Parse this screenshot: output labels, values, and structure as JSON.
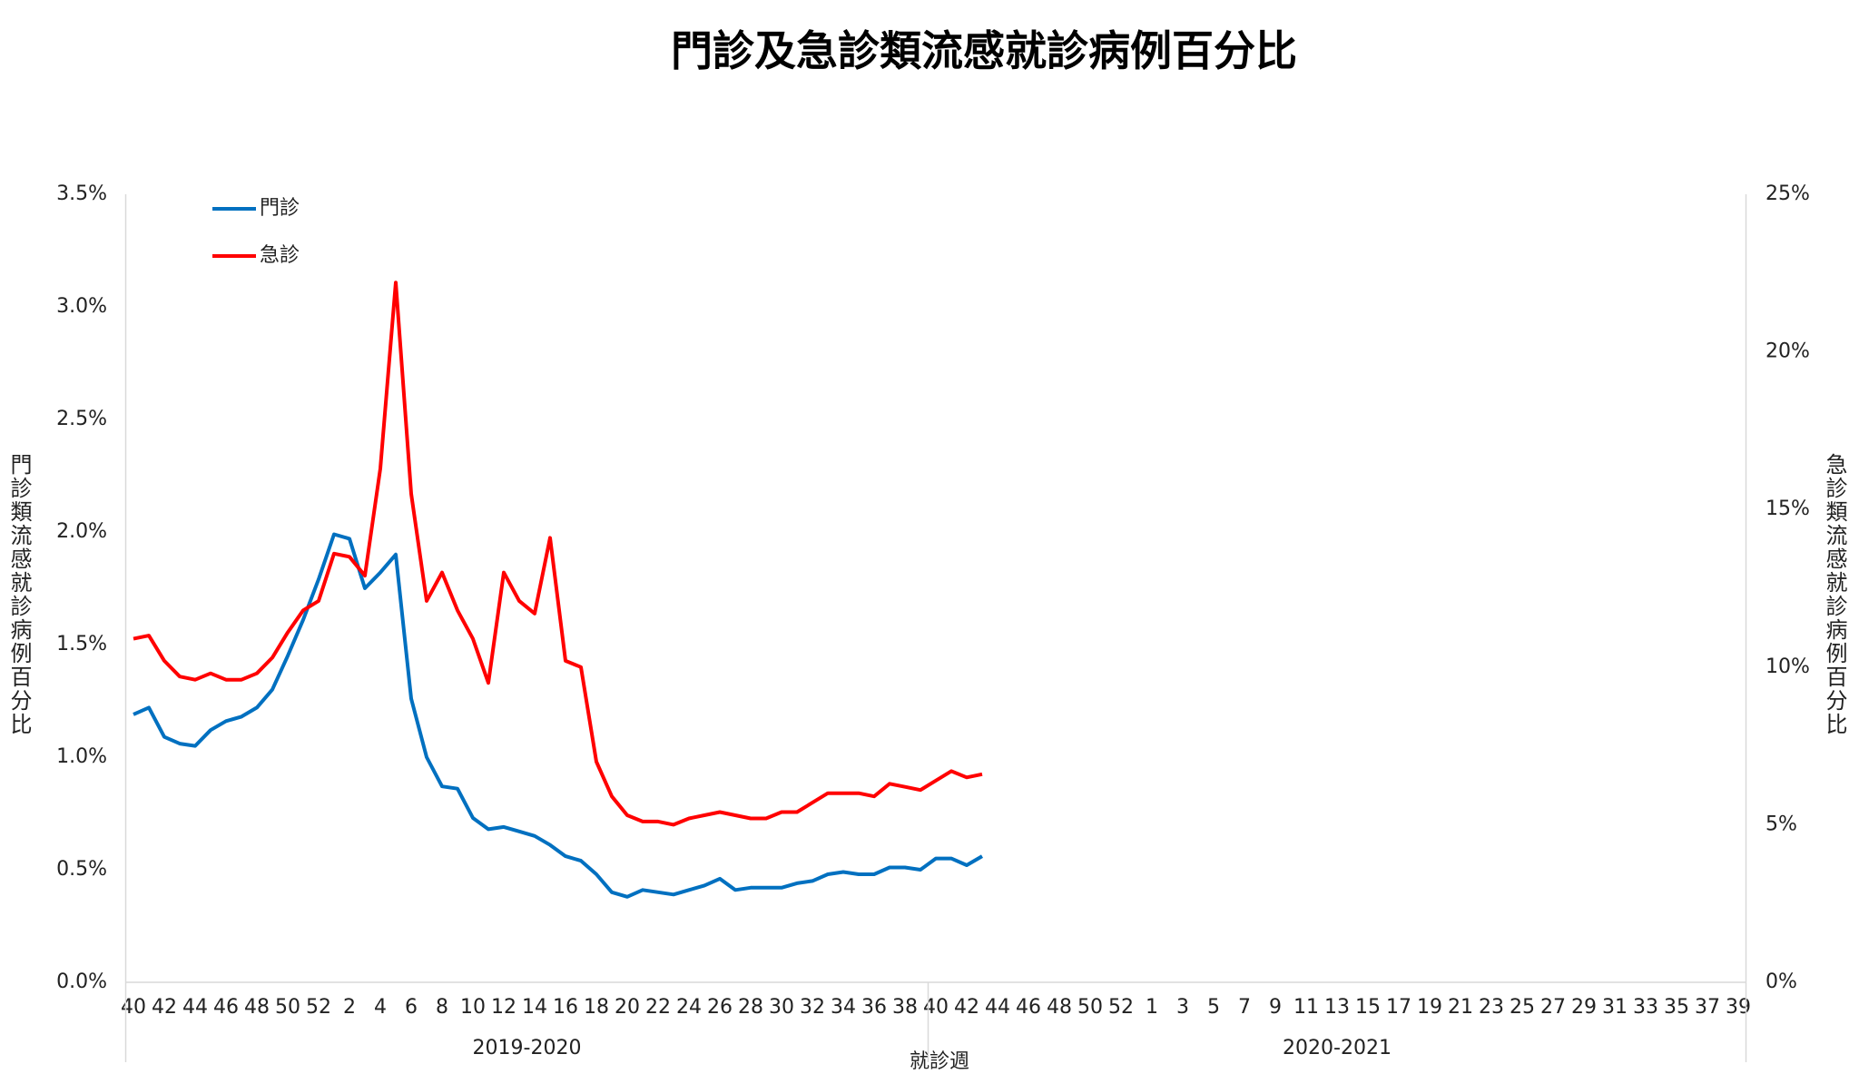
{
  "chart_data": {
    "type": "line",
    "title": "門診及急診類流感就診病例百分比",
    "x_label": "就診週",
    "y_label": "門診類流感就診病例百分比",
    "y2_label": "急診類流感就診病例百分比",
    "x_groups": [
      "2019-2020",
      "2020-2021"
    ],
    "categories": [
      "40",
      null,
      "42",
      null,
      "44",
      null,
      "46",
      null,
      "48",
      null,
      "50",
      null,
      "52",
      null,
      "2",
      null,
      "4",
      null,
      "6",
      null,
      "8",
      null,
      "10",
      null,
      "12",
      null,
      "14",
      null,
      "16",
      null,
      "18",
      null,
      "20",
      null,
      "22",
      null,
      "24",
      null,
      "26",
      null,
      "28",
      null,
      "30",
      null,
      "32",
      null,
      "34",
      null,
      "36",
      null,
      "38",
      null,
      "40",
      null,
      "42",
      null,
      "44",
      null,
      "46",
      null,
      "48",
      null,
      "50",
      null,
      "52",
      null,
      "1",
      null,
      "3",
      null,
      "5",
      null,
      "7",
      null,
      "9",
      null,
      "11",
      null,
      "13",
      null,
      "15",
      null,
      "17",
      null,
      "19",
      null,
      "21",
      null,
      "23",
      null,
      "25",
      null,
      "27",
      null,
      "29",
      null,
      "31",
      null,
      "33",
      null,
      "35",
      null,
      "37",
      null,
      "39"
    ],
    "series": [
      {
        "name": "門診",
        "color": "#0070c0",
        "axis": "y",
        "values": [
          1.19,
          1.22,
          1.09,
          1.06,
          1.05,
          1.12,
          1.16,
          1.18,
          1.22,
          1.3,
          1.45,
          1.61,
          1.79,
          1.99,
          1.97,
          1.75,
          1.82,
          1.9,
          1.26,
          1.0,
          0.87,
          0.86,
          0.73,
          0.68,
          0.69,
          0.67,
          0.65,
          0.61,
          0.56,
          0.54,
          0.48,
          0.4,
          0.38,
          0.41,
          0.4,
          0.39,
          0.41,
          0.43,
          0.46,
          0.41,
          0.42,
          0.42,
          0.42,
          0.44,
          0.45,
          0.48,
          0.49,
          0.48,
          0.48,
          0.51,
          0.51,
          0.5,
          0.55,
          0.55,
          0.52,
          0.56,
          null,
          null,
          null,
          null,
          null,
          null,
          null,
          null,
          null,
          null,
          null,
          null,
          null,
          null,
          null,
          null,
          null,
          null,
          null,
          null,
          null,
          null,
          null,
          null,
          null,
          null,
          null,
          null,
          null,
          null,
          null,
          null,
          null,
          null,
          null,
          null,
          null,
          null,
          null,
          null,
          null,
          null,
          null,
          null,
          null,
          null,
          null,
          null,
          null
        ]
      },
      {
        "name": "急診",
        "color": "#ff0000",
        "axis": "y2",
        "values": [
          10.9,
          11.0,
          10.2,
          9.7,
          9.6,
          9.8,
          9.6,
          9.6,
          9.8,
          10.3,
          11.1,
          11.8,
          12.1,
          13.6,
          13.5,
          12.9,
          16.3,
          22.2,
          15.5,
          12.1,
          13.0,
          11.8,
          10.9,
          9.5,
          13.0,
          12.1,
          11.7,
          14.1,
          10.2,
          10.0,
          7.0,
          5.9,
          5.3,
          5.1,
          5.1,
          5.0,
          5.2,
          5.3,
          5.4,
          5.3,
          5.2,
          5.2,
          5.4,
          5.4,
          5.7,
          6.0,
          6.0,
          6.0,
          5.9,
          6.3,
          6.2,
          6.1,
          6.4,
          6.7,
          6.5,
          6.6,
          null,
          null,
          null,
          null,
          null,
          null,
          null,
          null,
          null,
          null,
          null,
          null,
          null,
          null,
          null,
          null,
          null,
          null,
          null,
          null,
          null,
          null,
          null,
          null,
          null,
          null,
          null,
          null,
          null,
          null,
          null,
          null,
          null,
          null,
          null,
          null,
          null,
          null,
          null,
          null,
          null,
          null,
          null,
          null,
          null,
          null,
          null,
          null,
          null
        ]
      }
    ],
    "ylim": [
      0,
      3.5
    ],
    "yticks": [
      {
        "value": 0,
        "label": "0.0%"
      },
      {
        "value": 0.5,
        "label": "0.5%"
      },
      {
        "value": 1,
        "label": "1.0%"
      },
      {
        "value": 1.5,
        "label": "1.5%"
      },
      {
        "value": 2,
        "label": "2.0%"
      },
      {
        "value": 2.5,
        "label": "2.5%"
      },
      {
        "value": 3,
        "label": "3.0%"
      },
      {
        "value": 3.5,
        "label": "3.5%"
      }
    ],
    "y2lim": [
      0,
      25
    ],
    "y2ticks": [
      {
        "value": 0,
        "label": "0%"
      },
      {
        "value": 5,
        "label": "5%"
      },
      {
        "value": 10,
        "label": "10%"
      },
      {
        "value": 15,
        "label": "15%"
      },
      {
        "value": 20,
        "label": "20%"
      },
      {
        "value": 25,
        "label": "25%"
      }
    ],
    "grid": false,
    "legend": "top-left"
  }
}
